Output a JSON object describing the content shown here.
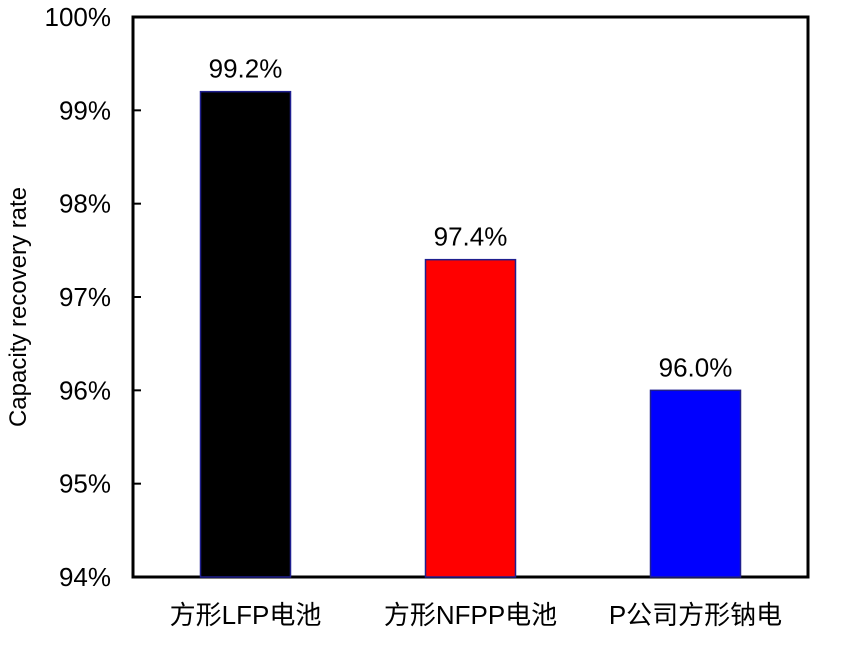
{
  "chart_data": {
    "type": "bar",
    "categories": [
      "方形LFP电池",
      "方形NFPP电池",
      "P公司方形钠电"
    ],
    "values": [
      99.2,
      97.4,
      96.0
    ],
    "data_labels": [
      "99.2%",
      "97.4%",
      "96.0%"
    ],
    "colors": [
      "#000000",
      "#ff0000",
      "#0000ff"
    ],
    "bar_outline_color": "#1f1f8f",
    "title": "",
    "xlabel": "",
    "ylabel": "Capacity recovery rate",
    "ylim": [
      94,
      100
    ],
    "yticks": [
      94,
      95,
      96,
      97,
      98,
      99,
      100
    ],
    "ytick_labels": [
      "94%",
      "95%",
      "96%",
      "97%",
      "98%",
      "99%",
      "100%"
    ],
    "grid": false,
    "legend": "none"
  }
}
